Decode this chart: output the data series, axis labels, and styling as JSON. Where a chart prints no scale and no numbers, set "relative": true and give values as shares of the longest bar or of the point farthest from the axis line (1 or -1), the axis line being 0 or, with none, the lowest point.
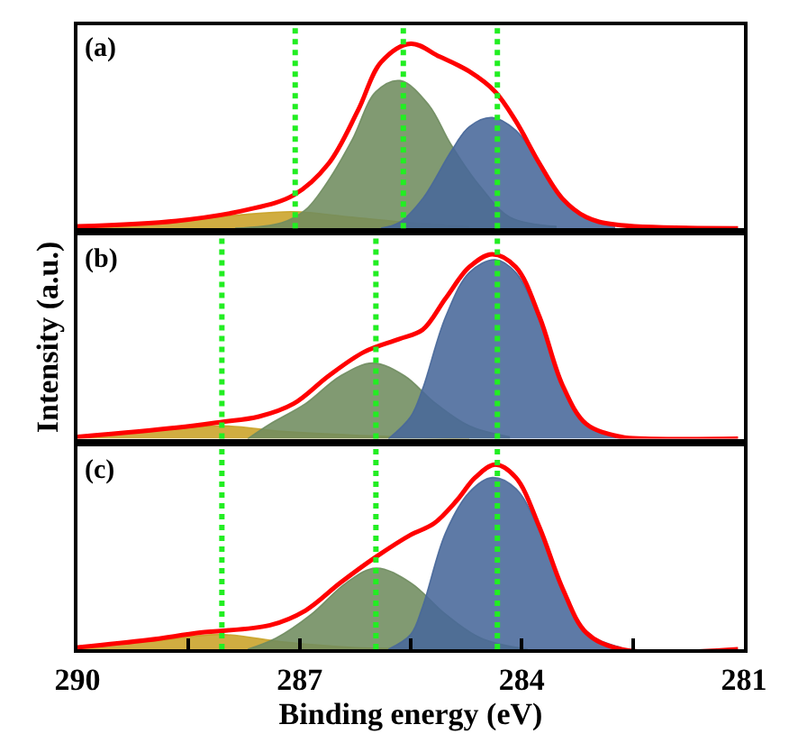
{
  "chart_data": [
    {
      "type": "area",
      "relative": true,
      "annotations": [
        "(a)"
      ],
      "xlim": [
        290,
        281
      ],
      "xticks": [
        290,
        287,
        284,
        281
      ],
      "tick_labels": false,
      "ref_lines": [
        {
          "axis": "x",
          "value": 287.06,
          "color": "#22ee22",
          "line_style": "dotted"
        },
        {
          "axis": "x",
          "value": 285.6,
          "color": "#22ee22",
          "line_style": "dotted"
        },
        {
          "axis": "x",
          "value": 284.33,
          "color": "#22ee22",
          "line_style": "dotted"
        }
      ],
      "series": [
        {
          "color": "#c9a227",
          "x": [
            290.0,
            288.66,
            287.87,
            287.08,
            286.29,
            285.5,
            284.71
          ],
          "values": [
            0.01,
            0.04,
            0.07,
            0.09,
            0.06,
            0.03,
            0.01
          ]
        },
        {
          "color": "#6f8c5f",
          "x": [
            287.87,
            287.24,
            286.92,
            286.61,
            286.29,
            285.97,
            285.64,
            285.26,
            284.95,
            284.55,
            284.16,
            283.53
          ],
          "values": [
            0.0,
            0.03,
            0.1,
            0.26,
            0.48,
            0.74,
            0.8,
            0.67,
            0.45,
            0.22,
            0.06,
            0.01
          ]
        },
        {
          "color": "#48689a",
          "x": [
            285.9,
            285.66,
            285.34,
            284.95,
            284.71,
            284.4,
            284.08,
            283.76,
            283.45,
            283.13,
            282.74
          ],
          "values": [
            0.0,
            0.03,
            0.16,
            0.42,
            0.55,
            0.6,
            0.53,
            0.35,
            0.16,
            0.06,
            0.02
          ]
        },
        {
          "type": "line",
          "color": "#ff0000",
          "x": [
            290.0,
            288.66,
            287.71,
            287.08,
            286.61,
            286.21,
            285.9,
            285.5,
            285.11,
            284.71,
            284.36,
            284.08,
            283.76,
            283.45,
            283.13,
            282.74,
            281.08
          ],
          "values": [
            0.01,
            0.04,
            0.1,
            0.18,
            0.35,
            0.64,
            0.9,
            1.0,
            0.93,
            0.85,
            0.74,
            0.58,
            0.35,
            0.16,
            0.06,
            0.02,
            0.0
          ]
        }
      ]
    },
    {
      "type": "area",
      "relative": true,
      "annotations": [
        "(b)"
      ],
      "ylabel": "Intensity (a.u.)",
      "xlim": [
        290,
        281
      ],
      "xticks": [
        290,
        287,
        284,
        281
      ],
      "tick_labels": false,
      "ref_lines": [
        {
          "axis": "x",
          "value": 288.05,
          "color": "#22ee22",
          "line_style": "dotted"
        },
        {
          "axis": "x",
          "value": 285.97,
          "color": "#22ee22",
          "line_style": "dotted"
        },
        {
          "axis": "x",
          "value": 284.33,
          "color": "#22ee22",
          "line_style": "dotted"
        }
      ],
      "series": [
        {
          "color": "#c9a227",
          "x": [
            290.0,
            289.05,
            288.07,
            287.24,
            286.29,
            284.71
          ],
          "values": [
            0.01,
            0.04,
            0.07,
            0.04,
            0.02,
            0.0
          ]
        },
        {
          "color": "#6f8c5f",
          "x": [
            287.7,
            287.4,
            286.92,
            286.45,
            286.01,
            285.58,
            285.19,
            284.71,
            284.16
          ],
          "values": [
            0.0,
            0.08,
            0.19,
            0.34,
            0.41,
            0.34,
            0.2,
            0.07,
            0.01
          ]
        },
        {
          "color": "#48689a",
          "x": [
            285.8,
            285.5,
            285.34,
            285.03,
            284.71,
            284.36,
            284.08,
            283.76,
            283.45,
            283.13,
            282.66
          ],
          "values": [
            0.0,
            0.12,
            0.27,
            0.66,
            0.9,
            0.97,
            0.9,
            0.64,
            0.29,
            0.08,
            0.01
          ]
        },
        {
          "type": "line",
          "color": "#ff0000",
          "x": [
            290.0,
            288.66,
            288.07,
            287.55,
            287.08,
            286.61,
            286.13,
            285.66,
            285.34,
            285.03,
            284.71,
            284.4,
            284.08,
            283.76,
            283.45,
            283.13,
            282.66,
            282.34,
            281.08
          ],
          "values": [
            0.01,
            0.06,
            0.09,
            0.12,
            0.19,
            0.34,
            0.47,
            0.54,
            0.59,
            0.76,
            0.93,
            1.0,
            0.93,
            0.66,
            0.29,
            0.08,
            0.01,
            0.0,
            0.0
          ]
        }
      ]
    },
    {
      "type": "area",
      "relative": true,
      "annotations": [
        "(c)"
      ],
      "xlabel": "Binding energy (eV)",
      "xlim": [
        290,
        281
      ],
      "xticks": [
        290,
        {
          "value": 288.5,
          "label": null
        },
        287,
        {
          "value": 285.5,
          "label": null
        },
        284,
        {
          "value": 282.5,
          "label": null
        },
        281
      ],
      "tick_labels": "x",
      "ref_lines": [
        {
          "axis": "x",
          "value": 288.05,
          "color": "#22ee22",
          "line_style": "dotted"
        },
        {
          "axis": "x",
          "value": 285.97,
          "color": "#22ee22",
          "line_style": "dotted"
        },
        {
          "axis": "x",
          "value": 284.33,
          "color": "#22ee22",
          "line_style": "dotted"
        }
      ],
      "series": [
        {
          "color": "#c9a227",
          "x": [
            290.0,
            289.05,
            288.07,
            287.24,
            286.29,
            284.71
          ],
          "values": [
            0.01,
            0.04,
            0.08,
            0.04,
            0.01,
            0.0
          ]
        },
        {
          "color": "#6f8c5f",
          "x": [
            287.7,
            287.32,
            286.84,
            286.37,
            285.97,
            285.5,
            285.03,
            284.55,
            283.92
          ],
          "values": [
            0.0,
            0.06,
            0.19,
            0.36,
            0.44,
            0.36,
            0.19,
            0.06,
            0.0
          ]
        },
        {
          "color": "#48689a",
          "x": [
            285.8,
            285.5,
            285.34,
            285.03,
            284.71,
            284.4,
            284.08,
            283.76,
            283.45,
            283.13,
            282.66
          ],
          "values": [
            0.0,
            0.08,
            0.23,
            0.63,
            0.85,
            0.93,
            0.87,
            0.64,
            0.31,
            0.09,
            0.01
          ]
        },
        {
          "type": "line",
          "color": "#ff0000",
          "x": [
            290.0,
            289.05,
            288.34,
            287.4,
            286.92,
            286.45,
            285.97,
            285.5,
            285.19,
            284.87,
            284.63,
            284.36,
            284.08,
            283.76,
            283.45,
            283.13,
            282.66,
            281.08
          ],
          "values": [
            0.01,
            0.05,
            0.09,
            0.13,
            0.21,
            0.36,
            0.5,
            0.62,
            0.68,
            0.81,
            0.93,
            1.0,
            0.93,
            0.66,
            0.33,
            0.09,
            0.0,
            0.0
          ]
        }
      ]
    }
  ]
}
